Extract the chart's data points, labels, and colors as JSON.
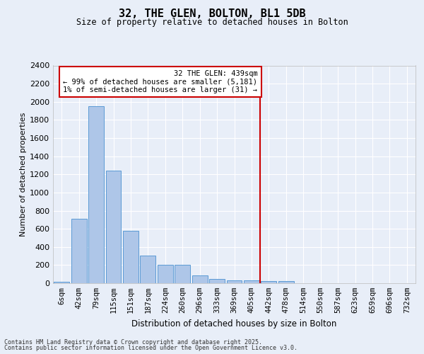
{
  "title1": "32, THE GLEN, BOLTON, BL1 5DB",
  "title2": "Size of property relative to detached houses in Bolton",
  "xlabel": "Distribution of detached houses by size in Bolton",
  "ylabel": "Number of detached properties",
  "bar_labels": [
    "6sqm",
    "42sqm",
    "79sqm",
    "115sqm",
    "151sqm",
    "187sqm",
    "224sqm",
    "260sqm",
    "296sqm",
    "333sqm",
    "369sqm",
    "405sqm",
    "442sqm",
    "478sqm",
    "514sqm",
    "550sqm",
    "587sqm",
    "623sqm",
    "659sqm",
    "696sqm",
    "732sqm"
  ],
  "bar_heights": [
    15,
    710,
    1950,
    1240,
    575,
    305,
    200,
    200,
    85,
    45,
    35,
    35,
    20,
    20,
    0,
    0,
    0,
    0,
    0,
    0,
    0
  ],
  "bar_color": "#aec6e8",
  "bar_edge_color": "#5b9bd5",
  "vline_x": 12,
  "vline_color": "#cc0000",
  "ylim": [
    0,
    2400
  ],
  "yticks": [
    0,
    200,
    400,
    600,
    800,
    1000,
    1200,
    1400,
    1600,
    1800,
    2000,
    2200,
    2400
  ],
  "annotation_title": "32 THE GLEN: 439sqm",
  "annotation_line1": "← 99% of detached houses are smaller (5,181)",
  "annotation_line2": "1% of semi-detached houses are larger (31) →",
  "annotation_box_color": "#cc0000",
  "background_color": "#e8eef8",
  "grid_color": "#ffffff",
  "footer1": "Contains HM Land Registry data © Crown copyright and database right 2025.",
  "footer2": "Contains public sector information licensed under the Open Government Licence v3.0."
}
